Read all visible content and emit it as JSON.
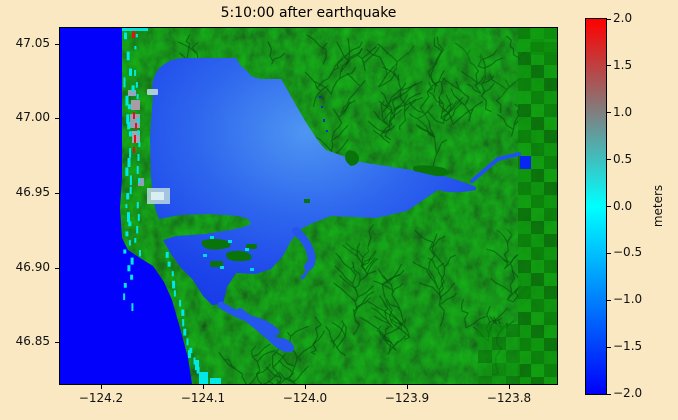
{
  "figure": {
    "title": "5:10:00 after earthquake",
    "background_color": "#F9E8C1"
  },
  "axes": {
    "x_tick_labels": [
      "−124.2",
      "−124.1",
      "−124.0",
      "−123.9",
      "−123.8"
    ],
    "y_tick_labels": [
      "47.05",
      "47.00",
      "46.95",
      "46.90",
      "46.85"
    ]
  },
  "colorbar": {
    "label": "meters",
    "tick_labels": [
      "2.0",
      "1.5",
      "1.0",
      "0.5",
      "0.0",
      "−0.5",
      "−1.0",
      "−1.5",
      "−2.0"
    ],
    "gradient_top": "#ff0000",
    "gradient_mid": "#00ffff",
    "gradient_bottom": "#0000fa"
  },
  "map_colors": {
    "ocean_deep_blue": "#0202fc",
    "bay_blue_light": "#4e96f2",
    "bay_blue_mid": "#2e66ee",
    "bay_blue_dark": "#1534e6",
    "channel_blue": "#2456ec",
    "river_blue": "#2050f0",
    "lake_blue": "#0726f2",
    "land_green": "#0a7a0a",
    "island_green": "#097409",
    "land_green_dark": "#04480a",
    "land_green_light": "#16a416",
    "shoreline_cyan": "#00e8e8",
    "flood_red": "#e81010",
    "mudflat_gray": "#9aa4b8",
    "pale_shallow": "#bcd8e0",
    "pale_shallow_bright": "#d8eef0"
  },
  "chart_data": {
    "type": "heatmap",
    "title": "5:10:00 after earthquake",
    "x_axis": {
      "label": "",
      "ticks": [
        -124.2,
        -124.1,
        -124.0,
        -123.9,
        -123.8
      ],
      "range": [
        -124.24,
        -123.75
      ]
    },
    "y_axis": {
      "label": "",
      "ticks": [
        47.05,
        47.0,
        46.95,
        46.9,
        46.85
      ],
      "range": [
        46.822,
        47.061
      ]
    },
    "colorbar": {
      "label": "meters",
      "range": [
        -2.0,
        2.0
      ],
      "ticks": [
        2.0,
        1.5,
        1.0,
        0.5,
        0.0,
        -0.5,
        -1.0,
        -1.5,
        -2.0
      ],
      "colormap_stops": [
        {
          "value": -2.0,
          "color": "#0000fa"
        },
        {
          "value": 0.0,
          "color": "#00ffff"
        },
        {
          "value": 2.0,
          "color": "#ff0000"
        }
      ]
    },
    "regions": [
      {
        "name": "open ocean strip along west edge",
        "approx_surface_elevation_m": -2.0
      },
      {
        "name": "large estuary/bay in center-left",
        "approx_surface_elevation_m": -1.2
      },
      {
        "name": "eastward river channel ending in small square lake",
        "approx_surface_elevation_m": -1.0
      },
      {
        "name": "barrier spit shoreline speckles (cyan)",
        "approx_surface_elevation_m": 0.0
      },
      {
        "name": "small flooded spots on barrier spit (red)",
        "approx_surface_elevation_m": 2.0
      },
      {
        "name": "terrain-shaded green land with dendritic drainage",
        "approx_surface_elevation_m": null
      }
    ],
    "legend_position": "right colorbar",
    "grid": false
  }
}
